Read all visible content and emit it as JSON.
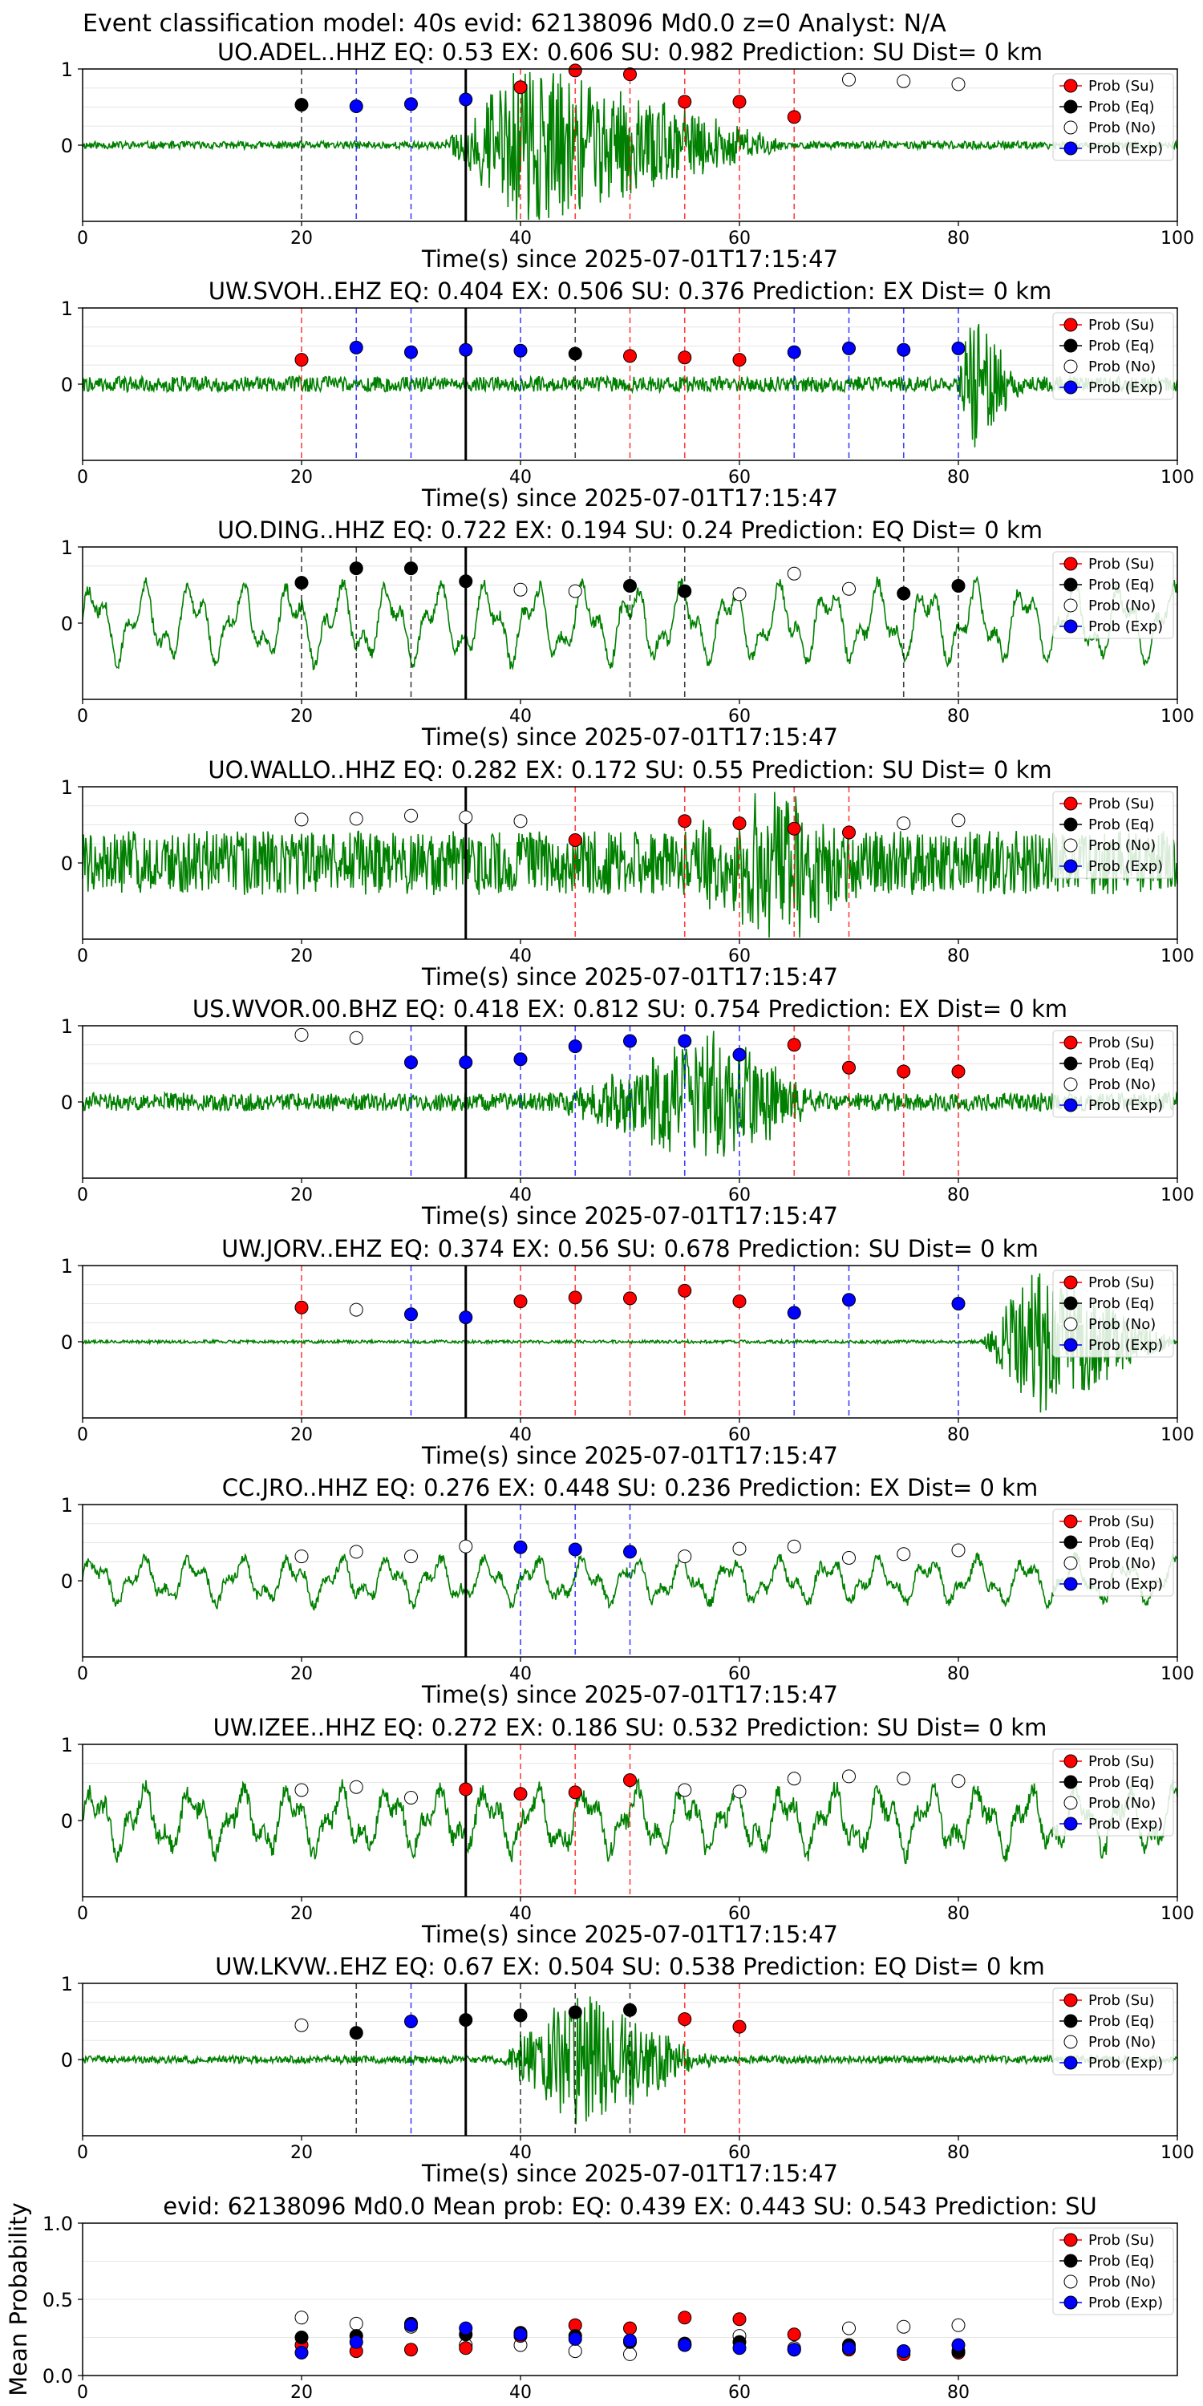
{
  "suptitle": "Event classification model: 40s evid: 62138096 Md0.0 z=0 Analyst: N/A",
  "colors": {
    "waveform": "#008000",
    "su": "#ff0000",
    "eq": "#000000",
    "no": "#ffffff",
    "exp": "#0000ff",
    "event_line": "#000000"
  },
  "legend": [
    "Prob (Su)",
    "Prob (Eq)",
    "Prob (No)",
    "Prob (Exp)"
  ],
  "chart_data": [
    {
      "type": "line",
      "title": "UO.ADEL..HHZ   EQ: 0.53  EX: 0.606  SU: 0.982   Prediction: SU    Dist= 0 km",
      "xlabel": "Time(s) since 2025-07-01T17:15:47",
      "xlim": [
        0,
        100
      ],
      "xticks": [
        0,
        20,
        40,
        60,
        80,
        100
      ],
      "yticks": [
        0,
        1
      ],
      "event_line_x": 35,
      "waveform": {
        "style": "burst",
        "onset": 33,
        "peak": 40,
        "decay": 65,
        "noise": 0.05,
        "amp": 1.1,
        "seed": 11
      },
      "points": [
        {
          "x": 20,
          "y": 0.53,
          "class": "eq"
        },
        {
          "x": 25,
          "y": 0.51,
          "class": "exp"
        },
        {
          "x": 30,
          "y": 0.54,
          "class": "exp"
        },
        {
          "x": 35,
          "y": 0.6,
          "class": "exp"
        },
        {
          "x": 40,
          "y": 0.76,
          "class": "su"
        },
        {
          "x": 45,
          "y": 0.98,
          "class": "su"
        },
        {
          "x": 50,
          "y": 0.93,
          "class": "su"
        },
        {
          "x": 55,
          "y": 0.57,
          "class": "su"
        },
        {
          "x": 60,
          "y": 0.57,
          "class": "su"
        },
        {
          "x": 65,
          "y": 0.37,
          "class": "su"
        },
        {
          "x": 70,
          "y": 0.86,
          "class": "no"
        },
        {
          "x": 75,
          "y": 0.84,
          "class": "no"
        },
        {
          "x": 80,
          "y": 0.8,
          "class": "no"
        }
      ]
    },
    {
      "type": "line",
      "title": "UW.SVOH..EHZ   EQ: 0.404  EX: 0.506  SU: 0.376   Prediction: EX    Dist= 0 km",
      "xlabel": "Time(s) since 2025-07-01T17:15:47",
      "xlim": [
        0,
        100
      ],
      "xticks": [
        0,
        20,
        40,
        60,
        80,
        100
      ],
      "yticks": [
        0,
        1
      ],
      "event_line_x": 35,
      "waveform": {
        "style": "late",
        "onset": 80,
        "peak": 81,
        "decay": 86,
        "noise": 0.1,
        "amp": 1.0,
        "seed": 22
      },
      "points": [
        {
          "x": 20,
          "y": 0.32,
          "class": "su"
        },
        {
          "x": 25,
          "y": 0.48,
          "class": "exp"
        },
        {
          "x": 30,
          "y": 0.42,
          "class": "exp"
        },
        {
          "x": 35,
          "y": 0.45,
          "class": "exp"
        },
        {
          "x": 40,
          "y": 0.44,
          "class": "exp"
        },
        {
          "x": 45,
          "y": 0.4,
          "class": "eq"
        },
        {
          "x": 50,
          "y": 0.37,
          "class": "su"
        },
        {
          "x": 55,
          "y": 0.35,
          "class": "su"
        },
        {
          "x": 60,
          "y": 0.32,
          "class": "su"
        },
        {
          "x": 65,
          "y": 0.42,
          "class": "exp"
        },
        {
          "x": 70,
          "y": 0.47,
          "class": "exp"
        },
        {
          "x": 75,
          "y": 0.45,
          "class": "exp"
        },
        {
          "x": 80,
          "y": 0.47,
          "class": "exp"
        }
      ]
    },
    {
      "type": "line",
      "title": "UO.DING..HHZ   EQ: 0.722  EX: 0.194  SU: 0.24   Prediction: EQ    Dist= 0 km",
      "xlabel": "Time(s) since 2025-07-01T17:15:47",
      "xlim": [
        0,
        100
      ],
      "xticks": [
        0,
        20,
        40,
        60,
        80,
        100
      ],
      "yticks": [
        0,
        1
      ],
      "event_line_x": 35,
      "waveform": {
        "style": "swell",
        "noise": 0.08,
        "amp": 0.55,
        "seed": 33
      },
      "points": [
        {
          "x": 20,
          "y": 0.53,
          "class": "eq"
        },
        {
          "x": 25,
          "y": 0.72,
          "class": "eq"
        },
        {
          "x": 30,
          "y": 0.72,
          "class": "eq"
        },
        {
          "x": 35,
          "y": 0.55,
          "class": "eq"
        },
        {
          "x": 40,
          "y": 0.44,
          "class": "no"
        },
        {
          "x": 45,
          "y": 0.42,
          "class": "no"
        },
        {
          "x": 50,
          "y": 0.49,
          "class": "eq"
        },
        {
          "x": 55,
          "y": 0.42,
          "class": "eq"
        },
        {
          "x": 60,
          "y": 0.38,
          "class": "no"
        },
        {
          "x": 65,
          "y": 0.65,
          "class": "no"
        },
        {
          "x": 70,
          "y": 0.45,
          "class": "no"
        },
        {
          "x": 75,
          "y": 0.39,
          "class": "eq"
        },
        {
          "x": 80,
          "y": 0.49,
          "class": "eq"
        }
      ]
    },
    {
      "type": "line",
      "title": "UO.WALLO..HHZ   EQ: 0.282  EX: 0.172  SU: 0.55   Prediction: SU    Dist= 0 km",
      "xlabel": "Time(s) since 2025-07-01T17:15:47",
      "xlim": [
        0,
        100
      ],
      "xticks": [
        0,
        20,
        40,
        60,
        80,
        100
      ],
      "yticks": [
        0,
        1
      ],
      "event_line_x": 35,
      "waveform": {
        "style": "noisy",
        "onset": 55,
        "peak": 63,
        "decay": 72,
        "noise": 0.42,
        "amp": 0.95,
        "seed": 44
      },
      "points": [
        {
          "x": 20,
          "y": 0.57,
          "class": "no"
        },
        {
          "x": 25,
          "y": 0.58,
          "class": "no"
        },
        {
          "x": 30,
          "y": 0.62,
          "class": "no"
        },
        {
          "x": 35,
          "y": 0.6,
          "class": "no"
        },
        {
          "x": 40,
          "y": 0.55,
          "class": "no"
        },
        {
          "x": 45,
          "y": 0.3,
          "class": "su"
        },
        {
          "x": 55,
          "y": 0.55,
          "class": "su"
        },
        {
          "x": 60,
          "y": 0.52,
          "class": "su"
        },
        {
          "x": 65,
          "y": 0.45,
          "class": "su"
        },
        {
          "x": 70,
          "y": 0.4,
          "class": "su"
        },
        {
          "x": 75,
          "y": 0.52,
          "class": "no"
        },
        {
          "x": 80,
          "y": 0.56,
          "class": "no"
        }
      ]
    },
    {
      "type": "line",
      "title": "US.WVOR.00.BHZ   EQ: 0.418  EX: 0.812  SU: 0.754   Prediction: EX    Dist= 0 km",
      "xlabel": "Time(s) since 2025-07-01T17:15:47",
      "xlim": [
        0,
        100
      ],
      "xticks": [
        0,
        20,
        40,
        60,
        80,
        100
      ],
      "yticks": [
        0,
        1
      ],
      "event_line_x": 35,
      "waveform": {
        "style": "burst",
        "onset": 43,
        "peak": 58,
        "decay": 68,
        "noise": 0.12,
        "amp": 0.9,
        "seed": 55
      },
      "points": [
        {
          "x": 20,
          "y": 0.88,
          "class": "no"
        },
        {
          "x": 25,
          "y": 0.84,
          "class": "no"
        },
        {
          "x": 30,
          "y": 0.52,
          "class": "exp"
        },
        {
          "x": 35,
          "y": 0.52,
          "class": "exp"
        },
        {
          "x": 40,
          "y": 0.56,
          "class": "exp"
        },
        {
          "x": 45,
          "y": 0.73,
          "class": "exp"
        },
        {
          "x": 50,
          "y": 0.8,
          "class": "exp"
        },
        {
          "x": 55,
          "y": 0.8,
          "class": "exp"
        },
        {
          "x": 60,
          "y": 0.62,
          "class": "exp"
        },
        {
          "x": 65,
          "y": 0.75,
          "class": "su"
        },
        {
          "x": 70,
          "y": 0.45,
          "class": "su"
        },
        {
          "x": 75,
          "y": 0.4,
          "class": "su"
        },
        {
          "x": 80,
          "y": 0.4,
          "class": "su"
        }
      ]
    },
    {
      "type": "line",
      "title": "UW.JORV..EHZ   EQ: 0.374  EX: 0.56  SU: 0.678   Prediction: SU    Dist= 0 km",
      "xlabel": "Time(s) since 2025-07-01T17:15:47",
      "xlim": [
        0,
        100
      ],
      "xticks": [
        0,
        20,
        40,
        60,
        80,
        100
      ],
      "yticks": [
        0,
        1
      ],
      "event_line_x": 35,
      "waveform": {
        "style": "late",
        "onset": 82,
        "peak": 87,
        "decay": 100,
        "noise": 0.02,
        "amp": 1.0,
        "seed": 66
      },
      "points": [
        {
          "x": 20,
          "y": 0.45,
          "class": "su"
        },
        {
          "x": 25,
          "y": 0.42,
          "class": "no"
        },
        {
          "x": 30,
          "y": 0.36,
          "class": "exp"
        },
        {
          "x": 35,
          "y": 0.32,
          "class": "exp"
        },
        {
          "x": 40,
          "y": 0.53,
          "class": "su"
        },
        {
          "x": 45,
          "y": 0.58,
          "class": "su"
        },
        {
          "x": 50,
          "y": 0.57,
          "class": "su"
        },
        {
          "x": 55,
          "y": 0.67,
          "class": "su"
        },
        {
          "x": 60,
          "y": 0.53,
          "class": "su"
        },
        {
          "x": 65,
          "y": 0.38,
          "class": "exp"
        },
        {
          "x": 70,
          "y": 0.55,
          "class": "exp"
        },
        {
          "x": 80,
          "y": 0.5,
          "class": "exp"
        }
      ]
    },
    {
      "type": "line",
      "title": "CC.JRO..HHZ   EQ: 0.276  EX: 0.448  SU: 0.236   Prediction: EX    Dist= 0 km",
      "xlabel": "Time(s) since 2025-07-01T17:15:47",
      "xlim": [
        0,
        100
      ],
      "xticks": [
        0,
        20,
        40,
        60,
        80,
        100
      ],
      "yticks": [
        0,
        1
      ],
      "event_line_x": 35,
      "waveform": {
        "style": "swell",
        "noise": 0.07,
        "amp": 0.32,
        "seed": 77
      },
      "points": [
        {
          "x": 20,
          "y": 0.32,
          "class": "no"
        },
        {
          "x": 25,
          "y": 0.38,
          "class": "no"
        },
        {
          "x": 30,
          "y": 0.32,
          "class": "no"
        },
        {
          "x": 35,
          "y": 0.45,
          "class": "no"
        },
        {
          "x": 40,
          "y": 0.44,
          "class": "exp"
        },
        {
          "x": 45,
          "y": 0.41,
          "class": "exp"
        },
        {
          "x": 50,
          "y": 0.38,
          "class": "exp"
        },
        {
          "x": 55,
          "y": 0.32,
          "class": "no"
        },
        {
          "x": 60,
          "y": 0.42,
          "class": "no"
        },
        {
          "x": 65,
          "y": 0.45,
          "class": "no"
        },
        {
          "x": 70,
          "y": 0.3,
          "class": "no"
        },
        {
          "x": 75,
          "y": 0.35,
          "class": "no"
        },
        {
          "x": 80,
          "y": 0.4,
          "class": "no"
        }
      ]
    },
    {
      "type": "line",
      "title": "UW.IZEE..HHZ   EQ: 0.272  EX: 0.186  SU: 0.532   Prediction: SU    Dist= 0 km",
      "xlabel": "Time(s) since 2025-07-01T17:15:47",
      "xlim": [
        0,
        100
      ],
      "xticks": [
        0,
        20,
        40,
        60,
        80,
        100
      ],
      "yticks": [
        0,
        1
      ],
      "event_line_x": 35,
      "waveform": {
        "style": "swell",
        "noise": 0.12,
        "amp": 0.45,
        "seed": 88
      },
      "points": [
        {
          "x": 20,
          "y": 0.4,
          "class": "no"
        },
        {
          "x": 25,
          "y": 0.44,
          "class": "no"
        },
        {
          "x": 30,
          "y": 0.3,
          "class": "no"
        },
        {
          "x": 35,
          "y": 0.41,
          "class": "su"
        },
        {
          "x": 40,
          "y": 0.35,
          "class": "su"
        },
        {
          "x": 45,
          "y": 0.37,
          "class": "su"
        },
        {
          "x": 50,
          "y": 0.53,
          "class": "su"
        },
        {
          "x": 55,
          "y": 0.4,
          "class": "no"
        },
        {
          "x": 60,
          "y": 0.38,
          "class": "no"
        },
        {
          "x": 65,
          "y": 0.55,
          "class": "no"
        },
        {
          "x": 70,
          "y": 0.58,
          "class": "no"
        },
        {
          "x": 75,
          "y": 0.55,
          "class": "no"
        },
        {
          "x": 80,
          "y": 0.52,
          "class": "no"
        }
      ]
    },
    {
      "type": "line",
      "title": "UW.LKVW..EHZ   EQ: 0.67  EX: 0.504  SU: 0.538   Prediction: EQ    Dist= 0 km",
      "xlabel": "Time(s) since 2025-07-01T17:15:47",
      "xlim": [
        0,
        100
      ],
      "xticks": [
        0,
        20,
        40,
        60,
        80,
        100
      ],
      "yticks": [
        0,
        1
      ],
      "event_line_x": 35,
      "waveform": {
        "style": "burst",
        "onset": 38,
        "peak": 45,
        "decay": 58,
        "noise": 0.05,
        "amp": 0.95,
        "seed": 99
      },
      "points": [
        {
          "x": 20,
          "y": 0.45,
          "class": "no"
        },
        {
          "x": 25,
          "y": 0.35,
          "class": "eq"
        },
        {
          "x": 30,
          "y": 0.5,
          "class": "exp"
        },
        {
          "x": 35,
          "y": 0.52,
          "class": "eq"
        },
        {
          "x": 40,
          "y": 0.58,
          "class": "eq"
        },
        {
          "x": 45,
          "y": 0.62,
          "class": "eq"
        },
        {
          "x": 50,
          "y": 0.65,
          "class": "eq"
        },
        {
          "x": 55,
          "y": 0.53,
          "class": "su"
        },
        {
          "x": 60,
          "y": 0.43,
          "class": "su"
        }
      ]
    },
    {
      "type": "scatter",
      "title": "evid: 62138096  Md0.0    Mean prob:    EQ: 0.439  EX: 0.443  SU: 0.543   Prediction: SU",
      "ylabel": "Mean Probability",
      "xlim": [
        0,
        100
      ],
      "xticks": [
        0,
        20,
        40,
        60,
        80
      ],
      "ylim": [
        0,
        1
      ],
      "yticks": [
        0.0,
        0.5,
        1.0
      ],
      "ytick_labels": [
        "0.0",
        "0.5",
        "1.0"
      ],
      "x": [
        20,
        25,
        30,
        35,
        40,
        45,
        50,
        55,
        60,
        65,
        70,
        75,
        80
      ],
      "series": [
        {
          "key": "no",
          "values": [
            0.38,
            0.34,
            0.32,
            0.2,
            0.2,
            0.16,
            0.14,
            0.2,
            0.26,
            0.18,
            0.31,
            0.32,
            0.33
          ]
        },
        {
          "key": "su",
          "values": [
            0.2,
            0.16,
            0.17,
            0.18,
            0.26,
            0.33,
            0.31,
            0.38,
            0.37,
            0.27,
            0.17,
            0.14,
            0.15
          ]
        },
        {
          "key": "eq",
          "values": [
            0.25,
            0.26,
            0.34,
            0.27,
            0.28,
            0.26,
            0.22,
            0.21,
            0.22,
            0.17,
            0.2,
            0.16,
            0.16
          ]
        },
        {
          "key": "exp",
          "values": [
            0.15,
            0.22,
            0.33,
            0.31,
            0.27,
            0.24,
            0.23,
            0.2,
            0.18,
            0.17,
            0.18,
            0.16,
            0.2
          ]
        }
      ]
    }
  ]
}
